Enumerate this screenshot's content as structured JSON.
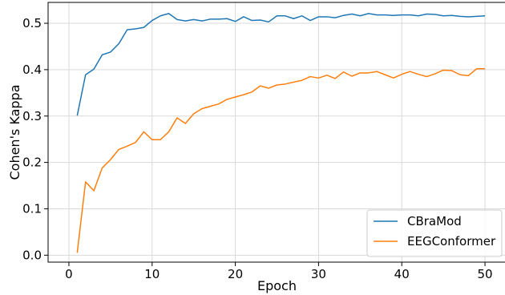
{
  "chart_data": {
    "type": "line",
    "title": "",
    "xlabel": "Epoch",
    "ylabel": "Cohen's Kappa",
    "xlim": [
      -2.5,
      52.5
    ],
    "ylim": [
      -0.015,
      0.545
    ],
    "x_ticks": [
      0,
      10,
      20,
      30,
      40,
      50
    ],
    "y_ticks": [
      0.0,
      0.1,
      0.2,
      0.3,
      0.4,
      0.5
    ],
    "x_tick_labels": [
      "0",
      "10",
      "20",
      "30",
      "40",
      "50"
    ],
    "y_tick_labels": [
      "0.0",
      "0.1",
      "0.2",
      "0.3",
      "0.4",
      "0.5"
    ],
    "grid": true,
    "legend_position": "bottom-right",
    "x": [
      1,
      2,
      3,
      4,
      5,
      6,
      7,
      8,
      9,
      10,
      11,
      12,
      13,
      14,
      15,
      16,
      17,
      18,
      19,
      20,
      21,
      22,
      23,
      24,
      25,
      26,
      27,
      28,
      29,
      30,
      31,
      32,
      33,
      34,
      35,
      36,
      37,
      38,
      39,
      40,
      41,
      42,
      43,
      44,
      45,
      46,
      47,
      48,
      49,
      50
    ],
    "series": [
      {
        "name": "CBraMod",
        "color": "#1f77b4",
        "values": [
          0.301,
          0.389,
          0.401,
          0.432,
          0.438,
          0.456,
          0.486,
          0.488,
          0.491,
          0.506,
          0.516,
          0.521,
          0.508,
          0.505,
          0.508,
          0.505,
          0.509,
          0.509,
          0.51,
          0.504,
          0.514,
          0.506,
          0.507,
          0.503,
          0.516,
          0.516,
          0.51,
          0.516,
          0.506,
          0.514,
          0.514,
          0.512,
          0.517,
          0.52,
          0.516,
          0.521,
          0.518,
          0.518,
          0.517,
          0.518,
          0.518,
          0.516,
          0.52,
          0.519,
          0.516,
          0.517,
          0.515,
          0.514,
          0.515,
          0.516
        ]
      },
      {
        "name": "EEGConformer",
        "color": "#ff7f0e",
        "values": [
          0.005,
          0.158,
          0.139,
          0.188,
          0.206,
          0.228,
          0.235,
          0.243,
          0.266,
          0.249,
          0.249,
          0.266,
          0.296,
          0.284,
          0.305,
          0.316,
          0.321,
          0.326,
          0.336,
          0.341,
          0.346,
          0.352,
          0.365,
          0.36,
          0.367,
          0.369,
          0.373,
          0.377,
          0.385,
          0.382,
          0.388,
          0.381,
          0.395,
          0.386,
          0.393,
          0.393,
          0.396,
          0.389,
          0.382,
          0.39,
          0.396,
          0.39,
          0.385,
          0.391,
          0.399,
          0.398,
          0.389,
          0.387,
          0.402,
          0.402
        ]
      }
    ]
  }
}
